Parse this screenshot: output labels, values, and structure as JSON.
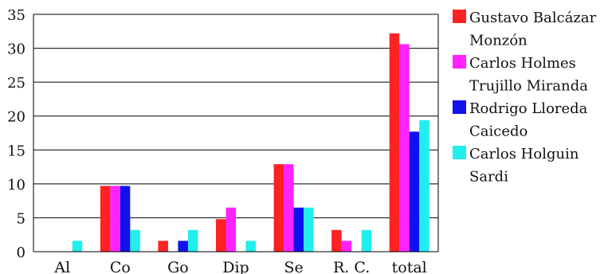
{
  "chart_data": {
    "type": "bar",
    "title": "",
    "xlabel": "",
    "ylabel": "",
    "categories": [
      "Al",
      "Co",
      "Go",
      "Dip",
      "Se",
      "R. C.",
      "total"
    ],
    "ylim": [
      0,
      35
    ],
    "yticks": [
      0,
      5,
      10,
      15,
      20,
      25,
      30,
      35
    ],
    "grid": "horizontal",
    "legend_position": "right",
    "series": [
      {
        "name": "Gustavo Balcázar Monzón",
        "name_lines": [
          "Gustavo Balcázar",
          "Monzón"
        ],
        "color": "#ff2222",
        "values": [
          0,
          9.7,
          1.6,
          4.8,
          12.9,
          3.2,
          32.2
        ]
      },
      {
        "name": "Carlos Holmes Trujillo Miranda",
        "name_lines": [
          "Carlos Holmes",
          "Trujillo Miranda"
        ],
        "color": "#ff22ff",
        "values": [
          0,
          9.7,
          0,
          6.5,
          12.9,
          1.6,
          30.6
        ]
      },
      {
        "name": "Rodrigo Lloreda Caicedo",
        "name_lines": [
          "Rodrigo Lloreda",
          "Caicedo"
        ],
        "color": "#1111ee",
        "values": [
          0,
          9.7,
          1.6,
          0,
          6.5,
          0,
          17.7
        ]
      },
      {
        "name": "Carlos Holguin Sardi",
        "name_lines": [
          "Carlos Holguin",
          "Sardi"
        ],
        "color": "#22eeee",
        "values": [
          1.6,
          3.2,
          3.2,
          1.6,
          6.5,
          3.2,
          19.4
        ]
      }
    ]
  }
}
